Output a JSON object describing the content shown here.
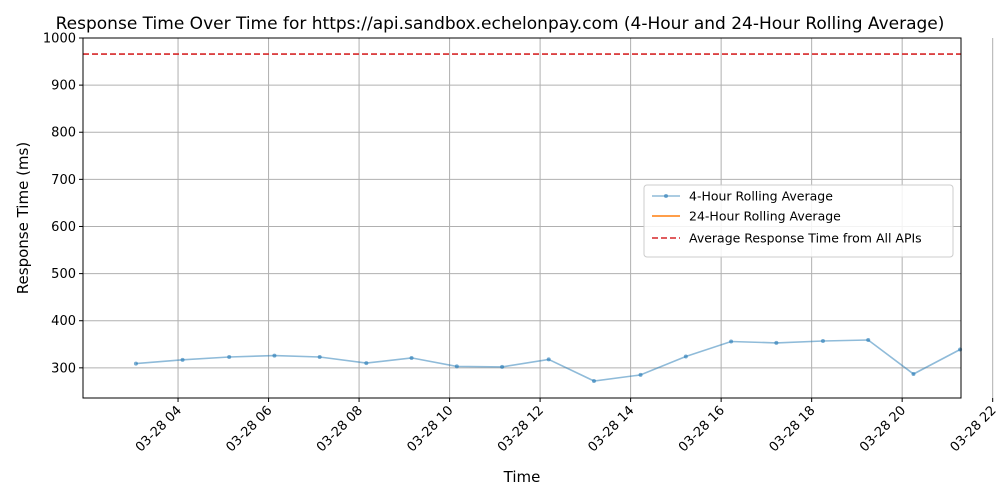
{
  "chart_data": {
    "type": "line",
    "title": "Response Time Over Time for https://api.sandbox.echelonpay.com (4-Hour and 24-Hour Rolling Average)",
    "xlabel": "Time",
    "ylabel": "Response Time (ms)",
    "x_ticks": [
      "03-28 04",
      "03-28 06",
      "03-28 08",
      "03-28 10",
      "03-28 12",
      "03-28 14",
      "03-28 16",
      "03-28 18",
      "03-28 20",
      "03-28 22"
    ],
    "x_tick_hours": [
      4,
      6,
      8,
      10,
      12,
      14,
      16,
      18,
      20,
      22
    ],
    "xlim_hours": [
      1.9,
      21.3
    ],
    "y_ticks": [
      300,
      400,
      500,
      600,
      700,
      800,
      900,
      1000
    ],
    "ylim": [
      236,
      1000
    ],
    "grid": true,
    "legend_position": "center-right",
    "series": [
      {
        "name": "4-Hour Rolling Average",
        "color": "#1f77b4",
        "style": "line-with-points",
        "opacity": 0.5,
        "x_hours": [
          3.07,
          4.1,
          5.13,
          6.13,
          7.13,
          8.16,
          9.16,
          10.16,
          11.16,
          12.19,
          13.19,
          14.22,
          15.22,
          16.22,
          17.22,
          18.25,
          19.25,
          20.25,
          21.28
        ],
        "y": [
          309,
          317,
          323,
          326,
          323,
          310,
          321,
          303,
          302,
          318,
          272,
          285,
          324,
          356,
          353,
          357,
          359,
          287,
          339
        ]
      },
      {
        "name": "24-Hour Rolling Average",
        "color": "#ff7f0e",
        "style": "line",
        "x_hours": [],
        "y": []
      },
      {
        "name": "Average Response Time from All APIs",
        "color": "#d62728",
        "style": "dashed-hline",
        "y_const": 966
      }
    ]
  }
}
